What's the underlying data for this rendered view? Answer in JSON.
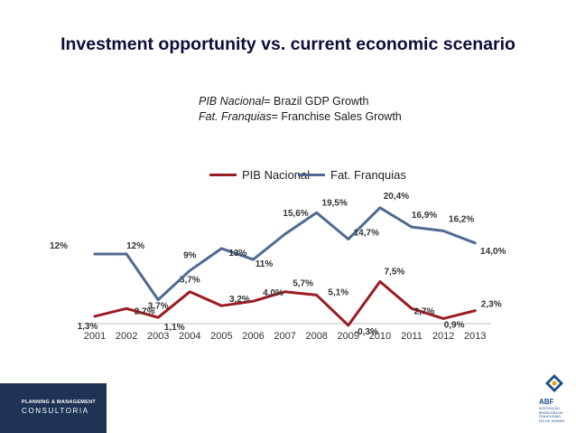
{
  "slide": {
    "title": "Investment opportunity vs. current economic scenario",
    "note1_key": "PIB Nacional",
    "note1_rest": "= Brazil GDP Growth",
    "note2_key": "Fat. Franquias",
    "note2_rest": "= Franchise Sales Growth"
  },
  "branding": {
    "consultancy_line1": "PLANNING & MANAGEMENT",
    "consultancy_line2": "CONSULTORIA",
    "logo_text": "ABF",
    "logo_subtext": [
      "ASSOCIAÇÃO",
      "BRASILEIRA DE",
      "FRANCHISING",
      "RIO DE JANEIRO"
    ]
  },
  "chart_data": {
    "type": "line",
    "categories": [
      "2001",
      "2002",
      "2003",
      "2004",
      "2005",
      "2006",
      "2007",
      "2008",
      "2009",
      "2010",
      "2011",
      "2012",
      "2013"
    ],
    "legend_position": "top",
    "grid": false,
    "y_axis_visible": false,
    "series": [
      {
        "name": "PIB Nacional",
        "color": "#9b1c23",
        "values": [
          1.3,
          2.7,
          1.1,
          5.7,
          3.2,
          4.0,
          5.7,
          5.1,
          -0.3,
          7.5,
          2.7,
          0.9,
          2.3
        ],
        "labels": [
          "1,3%",
          "2.7%",
          "1,1%",
          "5,7%",
          "3,2%",
          "4,0%",
          "5,7%",
          "5,1%",
          "-0,3%",
          "7,5%",
          "2,7%",
          "0,9%",
          "2,3%"
        ]
      },
      {
        "name": "Fat. Franquias",
        "color": "#4e6a92",
        "values": [
          12,
          12,
          3.7,
          9,
          13,
          11,
          15.6,
          19.5,
          14.7,
          20.4,
          16.9,
          16.2,
          14.0
        ],
        "labels": [
          "12%",
          "12%",
          "3,7%",
          "9%",
          "13%",
          "11%",
          "15,6%",
          "19,5%",
          "14,7%",
          "20,4%",
          "16,9%",
          "16,2%",
          "14,0%"
        ]
      }
    ]
  }
}
